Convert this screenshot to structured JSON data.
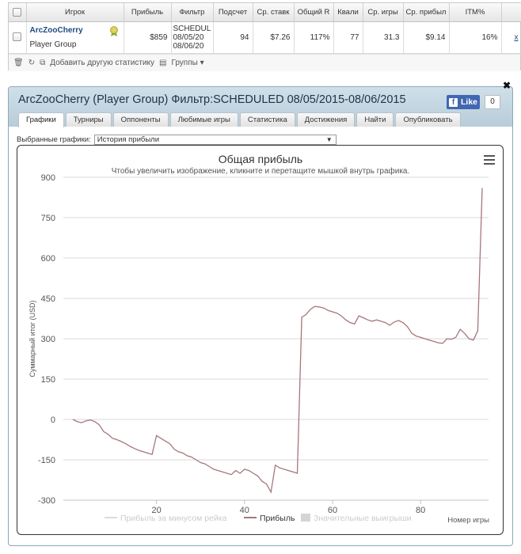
{
  "table": {
    "headers": [
      "Игрок",
      "Прибыль",
      "Фильтр",
      "Подсчет",
      "Ср. ставк",
      "Общий R",
      "Квали",
      "Ср. игры",
      "Ср. прибыл",
      "ITM%"
    ],
    "row": {
      "player_name": "ArcZooCherry",
      "player_group": "Player Group",
      "profit": "$859",
      "filter_lines": [
        "SCHEDUL",
        "08/05/20",
        "08/06/20"
      ],
      "count": "94",
      "avg_stake": "$7.26",
      "total_roi": "117%",
      "qualified": "77",
      "avg_games": "31.3",
      "avg_profit": "$9.14",
      "itm": "16%",
      "x_link": "x"
    }
  },
  "toolbar": {
    "add_stats": "Добавить другую статистику",
    "groups": "Группы"
  },
  "panel": {
    "title": "ArcZooCherry (Player Group) Фильтр:SCHEDULED 08/05/2015-08/06/2015",
    "like_label": "Like",
    "like_count": "0",
    "tabs": [
      "Графики",
      "Турниры",
      "Оппоненты",
      "Любимые игры",
      "Статистика",
      "Достижения",
      "Найти",
      "Опубликовать"
    ],
    "active_tab": "Графики",
    "select_label": "Выбранные графики:",
    "select_value": "История прибыли"
  },
  "chart_data": {
    "type": "line",
    "title": "Общая прибыль",
    "subtitle": "Чтобы увеличить изображение, кликните и перетащите мышкой внутрь графика.",
    "ylabel": "Суммарный итог (USD)",
    "xlabel": "Номер игры",
    "ylim": [
      -300,
      900
    ],
    "xlim": [
      1,
      94
    ],
    "yticks": [
      -300,
      -150,
      0,
      150,
      300,
      450,
      600,
      750,
      900
    ],
    "xticks": [
      20,
      40,
      60,
      80
    ],
    "legend": [
      "Прибыль за минусом рейка",
      "Прибыль",
      "Значительные выигрыши"
    ],
    "legend_position": "bottom",
    "series": [
      {
        "name": "Прибыль",
        "color": "#a5777a",
        "x": [
          1,
          2,
          3,
          4,
          5,
          6,
          7,
          8,
          9,
          10,
          11,
          12,
          13,
          14,
          15,
          16,
          17,
          18,
          19,
          20,
          21,
          22,
          23,
          24,
          25,
          26,
          27,
          28,
          29,
          30,
          31,
          32,
          33,
          34,
          35,
          36,
          37,
          38,
          39,
          40,
          41,
          42,
          43,
          44,
          45,
          46,
          47,
          48,
          49,
          50,
          51,
          52,
          53,
          54,
          55,
          56,
          57,
          58,
          59,
          60,
          61,
          62,
          63,
          64,
          65,
          66,
          67,
          68,
          69,
          70,
          71,
          72,
          73,
          74,
          75,
          76,
          77,
          78,
          79,
          80,
          81,
          82,
          83,
          84,
          85,
          86,
          87,
          88,
          89,
          90,
          91,
          92,
          93,
          94
        ],
        "y": [
          0,
          -8,
          -12,
          -5,
          -2,
          -8,
          -20,
          -45,
          -55,
          -70,
          -75,
          -82,
          -90,
          -100,
          -108,
          -115,
          -120,
          -125,
          -130,
          -60,
          -70,
          -80,
          -90,
          -110,
          -120,
          -125,
          -135,
          -140,
          -150,
          -160,
          -165,
          -175,
          -185,
          -190,
          -195,
          -200,
          -205,
          -190,
          -200,
          -185,
          -190,
          -200,
          -210,
          -230,
          -240,
          -270,
          -170,
          -180,
          -185,
          -190,
          -195,
          -200,
          380,
          390,
          410,
          420,
          418,
          414,
          405,
          400,
          395,
          385,
          370,
          360,
          355,
          385,
          378,
          370,
          365,
          370,
          365,
          360,
          350,
          362,
          368,
          360,
          345,
          320,
          310,
          305,
          300,
          295,
          290,
          285,
          283,
          300,
          298,
          305,
          335,
          320,
          300,
          295,
          330,
          860
        ]
      }
    ]
  }
}
